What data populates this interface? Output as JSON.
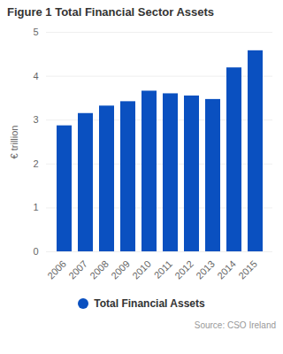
{
  "chart_data": {
    "type": "bar",
    "title": "Figure 1 Total Financial Sector Assets",
    "categories": [
      "2006",
      "2007",
      "2008",
      "2009",
      "2010",
      "2011",
      "2012",
      "2013",
      "2014",
      "2015"
    ],
    "series": [
      {
        "name": "Total Financial Assets",
        "color": "#0a50c0",
        "values": [
          2.87,
          3.15,
          3.32,
          3.42,
          3.66,
          3.6,
          3.55,
          3.47,
          4.19,
          4.58
        ]
      }
    ],
    "ylabel": "€ trillion",
    "ylim": [
      0,
      5
    ],
    "yticks": [
      0,
      1,
      2,
      3,
      4,
      5
    ],
    "grid": true,
    "legend": "bottom",
    "source": "Source: CSO Ireland"
  }
}
